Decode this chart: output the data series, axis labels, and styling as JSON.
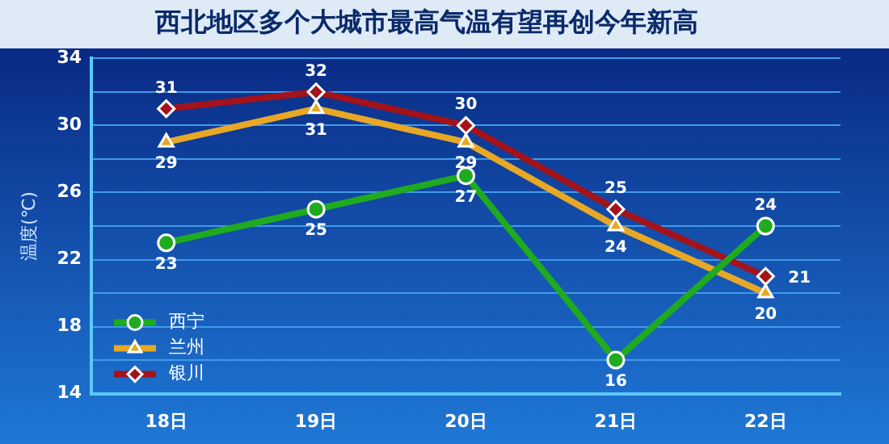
{
  "chart_data": {
    "type": "line",
    "title": "西北地区多个大城市最高气温有望再创今年新高",
    "ylabel": "温度(℃)",
    "categories": [
      "18日",
      "19日",
      "20日",
      "21日",
      "22日"
    ],
    "series": [
      {
        "name": "西宁",
        "color": "#1faa1f",
        "marker": "circle",
        "values": [
          23,
          25,
          27,
          16,
          24
        ]
      },
      {
        "name": "兰州",
        "color": "#e8a825",
        "marker": "triangle",
        "values": [
          29,
          31,
          29,
          24,
          20
        ]
      },
      {
        "name": "银川",
        "color": "#a3131b",
        "marker": "diamond",
        "values": [
          31,
          32,
          30,
          25,
          21
        ]
      }
    ],
    "ylim": [
      14,
      34
    ],
    "yticks": [
      14,
      {
        "value": 16,
        "label": null
      },
      18,
      {
        "value": 20,
        "label": null
      },
      22,
      {
        "value": 24,
        "label": null
      },
      26,
      {
        "value": 28,
        "label": null
      },
      30,
      {
        "value": 32,
        "label": null
      },
      34
    ],
    "grid": "y",
    "legend": "bottom left",
    "data_labels": true,
    "line_style": "solid"
  }
}
